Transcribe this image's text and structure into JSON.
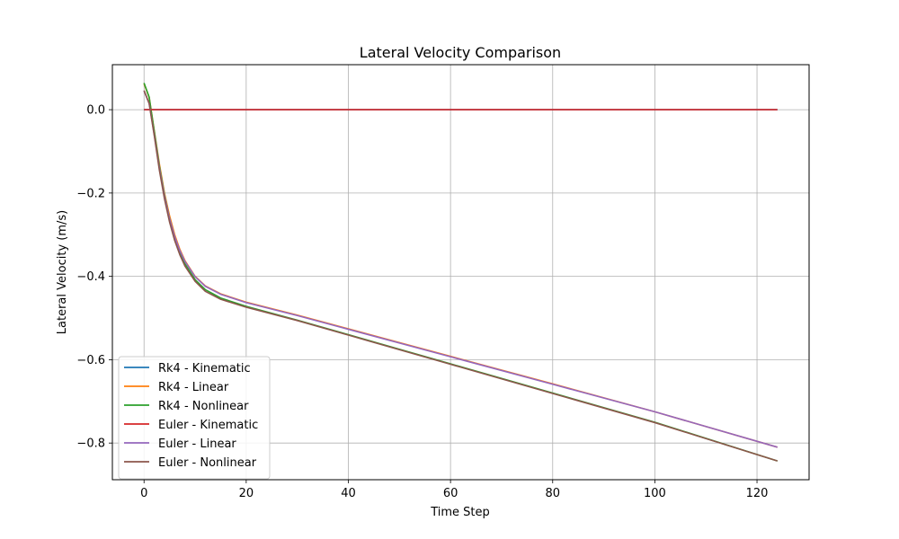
{
  "chart_data": {
    "type": "line",
    "title": "Lateral Velocity Comparison",
    "xlabel": "Time Step",
    "ylabel": "Lateral Velocity (m/s)",
    "xlim": [
      -6.2,
      130.2
    ],
    "ylim": [
      -0.888,
      0.108
    ],
    "xticks": [
      0,
      20,
      40,
      60,
      80,
      100,
      120
    ],
    "yticks": [
      0.0,
      -0.2,
      -0.4,
      -0.6,
      -0.8
    ],
    "xtick_labels": [
      "0",
      "20",
      "40",
      "60",
      "80",
      "100",
      "120"
    ],
    "ytick_labels": [
      "0.0",
      "−0.2",
      "−0.4",
      "−0.6",
      "−0.8"
    ],
    "grid": true,
    "legend_position": "lower-left",
    "series": [
      {
        "name": "Rk4 - Kinematic",
        "color": "#1f77b4",
        "x": [
          0,
          124
        ],
        "y": [
          0.0,
          0.0
        ]
      },
      {
        "name": "Rk4 - Linear",
        "color": "#ff7f0e",
        "x": [
          0,
          1,
          2,
          3,
          4,
          5,
          6,
          7,
          8,
          10,
          12,
          15,
          20,
          30,
          40,
          60,
          80,
          100,
          124
        ],
        "y": [
          0.062,
          0.03,
          -0.05,
          -0.13,
          -0.2,
          -0.255,
          -0.3,
          -0.335,
          -0.362,
          -0.4,
          -0.423,
          -0.442,
          -0.462,
          -0.493,
          -0.526,
          -0.592,
          -0.658,
          -0.725,
          -0.81
        ]
      },
      {
        "name": "Rk4 - Nonlinear",
        "color": "#2ca02c",
        "x": [
          0,
          1,
          2,
          3,
          4,
          5,
          6,
          7,
          8,
          10,
          12,
          15,
          20,
          30,
          40,
          60,
          80,
          100,
          124
        ],
        "y": [
          0.064,
          0.03,
          -0.052,
          -0.135,
          -0.205,
          -0.262,
          -0.306,
          -0.342,
          -0.37,
          -0.408,
          -0.432,
          -0.452,
          -0.472,
          -0.505,
          -0.54,
          -0.61,
          -0.68,
          -0.75,
          -0.843
        ]
      },
      {
        "name": "Euler - Kinematic",
        "color": "#d62728",
        "x": [
          0,
          124
        ],
        "y": [
          0.0,
          0.0
        ]
      },
      {
        "name": "Euler - Linear",
        "color": "#9467bd",
        "x": [
          0,
          1,
          2,
          3,
          4,
          5,
          6,
          7,
          8,
          10,
          12,
          15,
          20,
          30,
          40,
          60,
          80,
          100,
          124
        ],
        "y": [
          0.045,
          0.015,
          -0.06,
          -0.14,
          -0.208,
          -0.262,
          -0.305,
          -0.338,
          -0.364,
          -0.401,
          -0.424,
          -0.443,
          -0.463,
          -0.494,
          -0.527,
          -0.593,
          -0.659,
          -0.725,
          -0.81
        ]
      },
      {
        "name": "Euler - Nonlinear",
        "color": "#8c564b",
        "x": [
          0,
          1,
          2,
          3,
          4,
          5,
          6,
          7,
          8,
          10,
          12,
          15,
          20,
          30,
          40,
          60,
          80,
          100,
          124
        ],
        "y": [
          0.046,
          0.015,
          -0.062,
          -0.145,
          -0.214,
          -0.27,
          -0.314,
          -0.348,
          -0.375,
          -0.412,
          -0.436,
          -0.455,
          -0.474,
          -0.506,
          -0.541,
          -0.611,
          -0.681,
          -0.751,
          -0.843
        ]
      }
    ]
  }
}
